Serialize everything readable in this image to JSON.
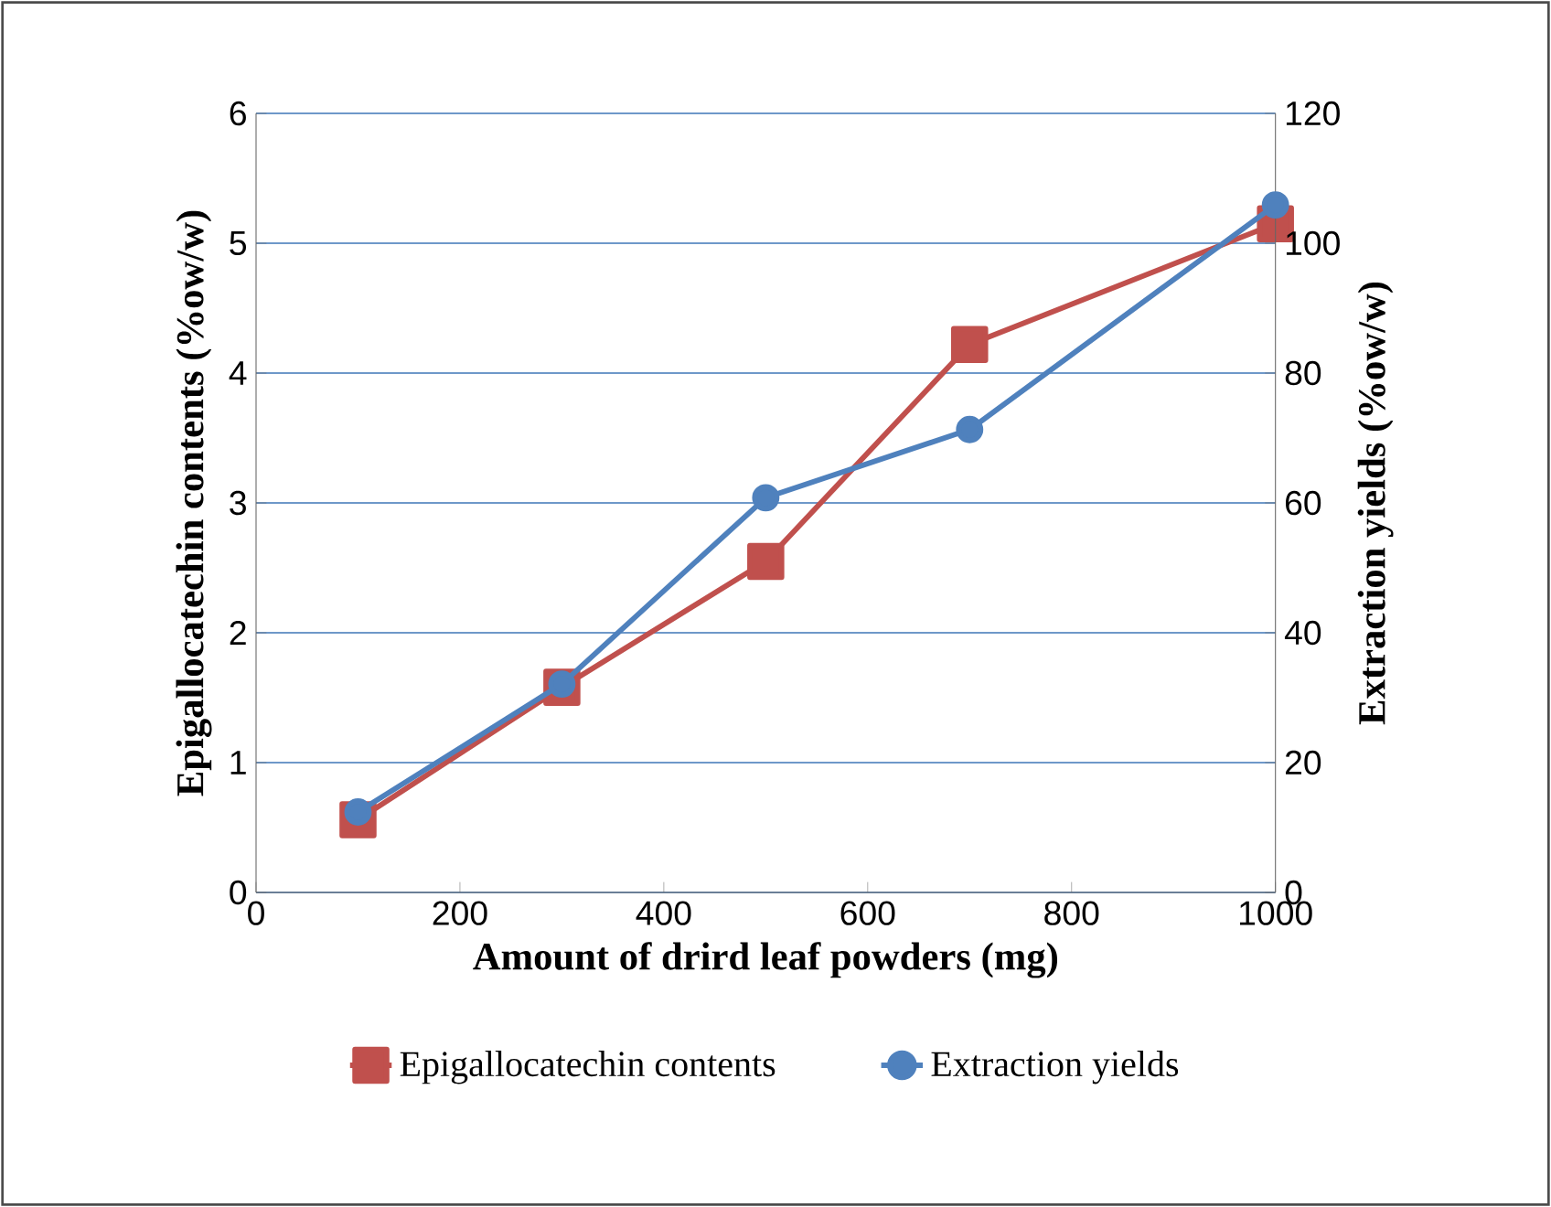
{
  "chart_data": {
    "type": "line",
    "xlabel": "Amount of drird leaf powders (mg)",
    "ylabel": "Epigallocatechin contents  (%ow/w)",
    "y2label": "Extraction yields  (%ow/w)",
    "x": [
      100,
      300,
      500,
      700,
      1000
    ],
    "series": [
      {
        "name": "Epigallocatechin contents",
        "color": "#c0504d",
        "marker": "square",
        "values": [
          0.56,
          1.58,
          2.55,
          4.22,
          5.15
        ]
      },
      {
        "name": "Extraction yields",
        "color": "#4f81bd",
        "marker": "circle",
        "axis": "y2",
        "values": [
          12.4,
          32.1,
          60.8,
          71.3,
          105.9
        ]
      }
    ],
    "xlim": [
      0,
      1000
    ],
    "xticks": [
      0,
      200,
      400,
      600,
      800,
      1000
    ],
    "ylim": [
      0,
      6
    ],
    "yticks": [
      0,
      1,
      2,
      3,
      4,
      5,
      6
    ],
    "y2lim": [
      0,
      120
    ],
    "y2ticks": [
      0,
      20,
      40,
      60,
      80,
      100,
      120
    ],
    "grid": "y",
    "legend": "bottom"
  }
}
